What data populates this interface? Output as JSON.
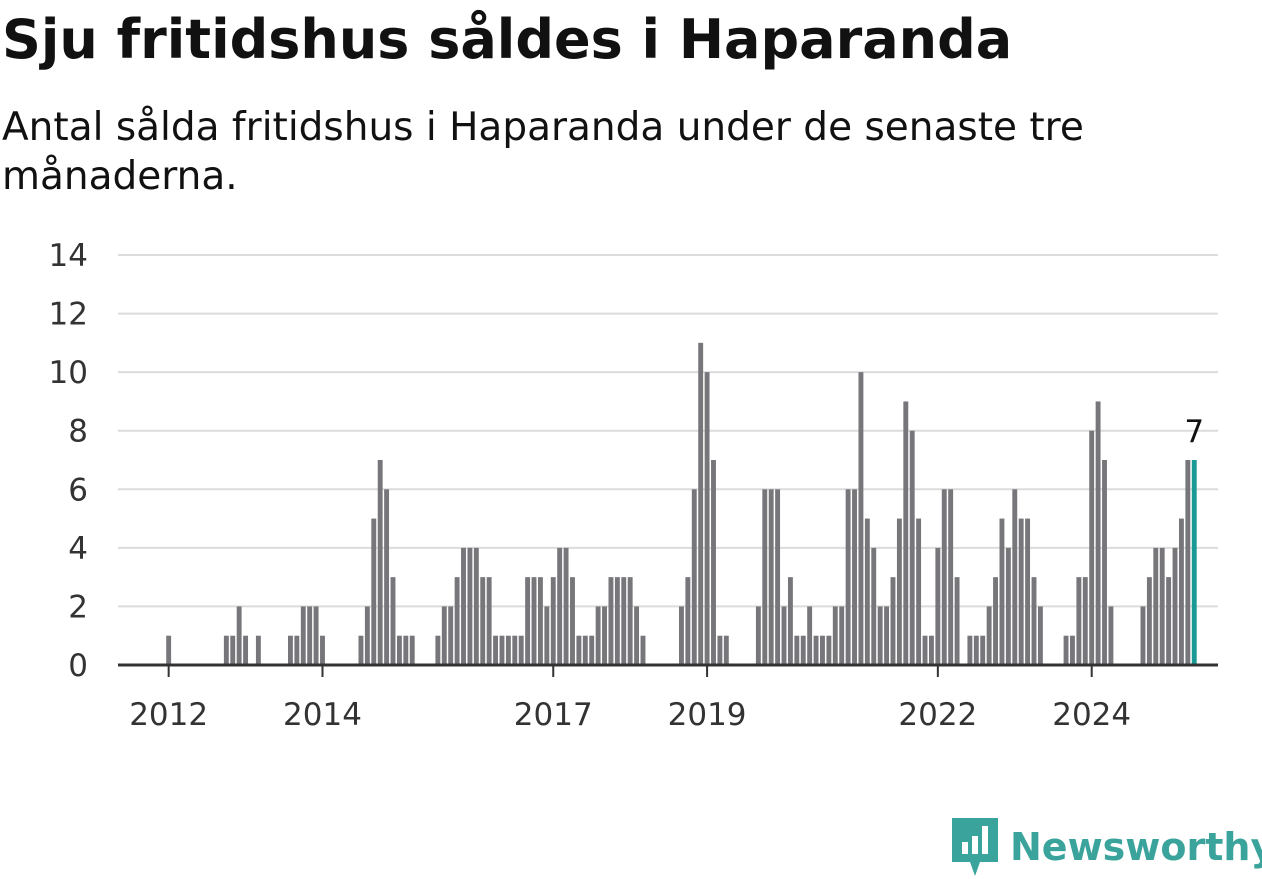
{
  "title": "Sju fritidshus såldes i Haparanda",
  "subtitle": "Antal sålda fritidshus i Haparanda under de senaste tre månaderna.",
  "brand": {
    "name": "Newsworthy",
    "icon": "newsworthy-logo-icon",
    "color": "#3aa39b"
  },
  "colors": {
    "bar": "#77767b",
    "highlight": "#1a9a95",
    "grid": "#dcdcdc",
    "axis": "#333333"
  },
  "chart_data": {
    "type": "bar",
    "title": "",
    "xlabel": "",
    "ylabel": "",
    "ylim": [
      0,
      14
    ],
    "y_ticks": [
      "0",
      "2",
      "4",
      "6",
      "8",
      "10",
      "12",
      "14"
    ],
    "x_ticks": [
      "2012",
      "2014",
      "2017",
      "2019",
      "2022",
      "2024"
    ],
    "grid": true,
    "end_label": "7",
    "series": [
      {
        "values": [
          1,
          0,
          0,
          0,
          0,
          0,
          0,
          0,
          0,
          1,
          1,
          2,
          1,
          0,
          1,
          0,
          0,
          0,
          0,
          1,
          1,
          2,
          2,
          2,
          1,
          0,
          0,
          0,
          0,
          0,
          1,
          2,
          5,
          7,
          6,
          3,
          1,
          1,
          1,
          0,
          0,
          0,
          1,
          2,
          2,
          3,
          4,
          4,
          4,
          3,
          3,
          1,
          1,
          1,
          1,
          1,
          3,
          3,
          3,
          2,
          3,
          4,
          4,
          3,
          1,
          1,
          1,
          2,
          2,
          3,
          3,
          3,
          3,
          2,
          1,
          0,
          0,
          0,
          0,
          0,
          2,
          3,
          6,
          11,
          10,
          7,
          1,
          1,
          0,
          0,
          0,
          0,
          2,
          6,
          6,
          6,
          2,
          3,
          1,
          1,
          2,
          1,
          1,
          1,
          2,
          2,
          6,
          6,
          10,
          5,
          4,
          2,
          2,
          3,
          5,
          9,
          8,
          5,
          1,
          1,
          4,
          6,
          6,
          3,
          0,
          1,
          1,
          1,
          2,
          3,
          5,
          4,
          6,
          5,
          5,
          3,
          2,
          0,
          0,
          0,
          1,
          1,
          3,
          3,
          8,
          9,
          7,
          2,
          0,
          0,
          0,
          0,
          2,
          3,
          4,
          4,
          3,
          4,
          5,
          7,
          7
        ]
      }
    ]
  }
}
